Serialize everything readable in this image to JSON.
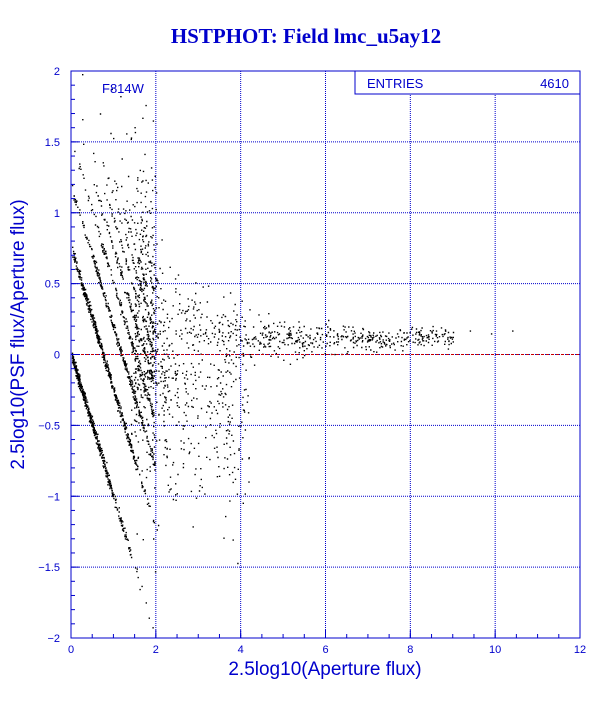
{
  "title": "HSTPHOT: Field lmc_u5ay12",
  "colors": {
    "title": "#0000cc",
    "axes": "#0000cc",
    "grid": "#0000cc",
    "points": "#000000",
    "reference_line": "#cc0000"
  },
  "chart_data": {
    "type": "scatter",
    "title": "HSTPHOT: Field lmc_u5ay12",
    "xlabel": "2.5log10(Aperture flux)",
    "ylabel": "2.5log10(PSF flux/Aperture flux)",
    "xlim": [
      0,
      12
    ],
    "ylim": [
      -2,
      2
    ],
    "xticks": [
      0,
      2,
      4,
      6,
      8,
      10,
      12
    ],
    "yticks": [
      -2,
      -1.5,
      -1,
      -0.5,
      0,
      0.5,
      1,
      1.5,
      2
    ],
    "grid": true,
    "filter_label": "F814W",
    "stats": {
      "label": "ENTRIES",
      "value": "4610"
    },
    "reference_line_y": 0,
    "point_count": 4610
  }
}
